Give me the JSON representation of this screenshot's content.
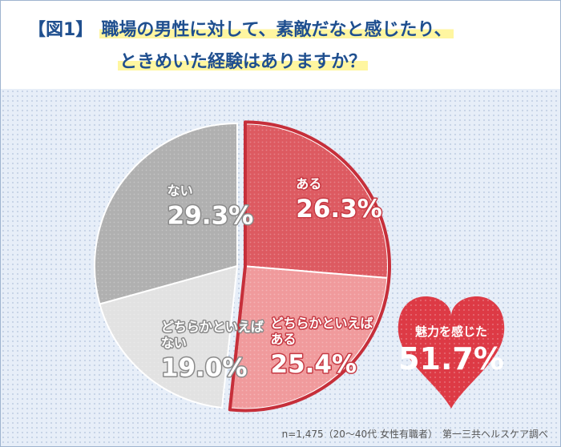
{
  "title": {
    "figure_label": "【図1】",
    "line1": "職場の男性に対して、素敵だなと感じたり、",
    "line2": "ときめいた経験はありますか？"
  },
  "chart_data": {
    "type": "pie",
    "categories": [
      "ある",
      "どちらかといえばある",
      "どちらかといえばない",
      "ない"
    ],
    "values": [
      26.3,
      25.4,
      19.0,
      29.3
    ],
    "value_labels": [
      "26.3%",
      "25.4%",
      "19.0%",
      "29.3%"
    ],
    "colors": [
      "#dd5a61",
      "#f09a9c",
      "#e2e2e2",
      "#b0b0b0"
    ],
    "category_display": [
      [
        "ある"
      ],
      [
        "どちらかといえば",
        "ある"
      ],
      [
        "どちらかといえば",
        "ない"
      ],
      [
        "ない"
      ]
    ],
    "highlight": {
      "label": "魅力を感じた",
      "value": 51.7,
      "value_label": "51.7%",
      "color": "#dd3a45"
    }
  },
  "footnote": "n=1,475（20～40代 女性有職者）　第一三共ヘルスケア調べ"
}
